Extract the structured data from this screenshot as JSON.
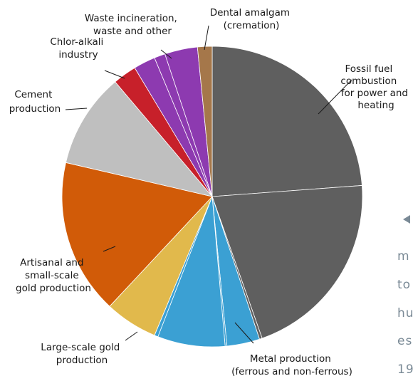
{
  "chart_data": {
    "type": "pie",
    "title": "",
    "start": "top",
    "direction": "clockwise",
    "slices": [
      {
        "label": "Fossil fuel combustion for power and heating",
        "value": 24.3,
        "color": "#5f5f5f"
      },
      {
        "label": "",
        "value": 21.2,
        "color": "#5f5f5f"
      },
      {
        "label": "",
        "value": 0.3,
        "color": "#5f5f5f"
      },
      {
        "label": "Metal production (ferrous and non-ferrous)",
        "value": 3.6,
        "color": "#3ba0d3"
      },
      {
        "label": "",
        "value": 0.2,
        "color": "#3ba0d3"
      },
      {
        "label": "",
        "value": 7.4,
        "color": "#3ba0d3"
      },
      {
        "label": "",
        "value": 0.4,
        "color": "#3ba0d3"
      },
      {
        "label": "Large-scale gold production",
        "value": 5.8,
        "color": "#e1b94c"
      },
      {
        "label": "Artisanal and small-scale gold production",
        "value": 17.0,
        "color": "#d15b08"
      },
      {
        "label": "Cement production",
        "value": 10.4,
        "color": "#bfbfbf"
      },
      {
        "label": "Chlor-alkali industry",
        "value": 2.6,
        "color": "#c7202a"
      },
      {
        "label": "",
        "value": 2.4,
        "color": "#8d3ab0"
      },
      {
        "label": "",
        "value": 1.2,
        "color": "#8d3ab0"
      },
      {
        "label": "Waste incineration, waste and other",
        "value": 3.6,
        "color": "#8d3ab0"
      },
      {
        "label": "Dental amalgam (cremation)",
        "value": 1.6,
        "color": "#a5774a"
      }
    ]
  },
  "labels": {
    "fossil": [
      "Fossil fuel",
      "combustion",
      "for power and",
      "heating"
    ],
    "metal": [
      "Metal production",
      "(ferrous and non-ferrous)"
    ],
    "large_gold": [
      "Large-scale gold",
      "production"
    ],
    "artisanal": [
      "Artisanal and",
      "small-scale",
      "gold production"
    ],
    "cement": [
      "Cement",
      "production"
    ],
    "chlor": [
      "Chlor-alkali",
      "industry"
    ],
    "waste": [
      "Waste incineration,",
      "waste and other"
    ],
    "dental": [
      "Dental amalgam",
      "(cremation)"
    ]
  },
  "side_text": [
    "m",
    "to",
    "hu",
    "es",
    "19"
  ]
}
